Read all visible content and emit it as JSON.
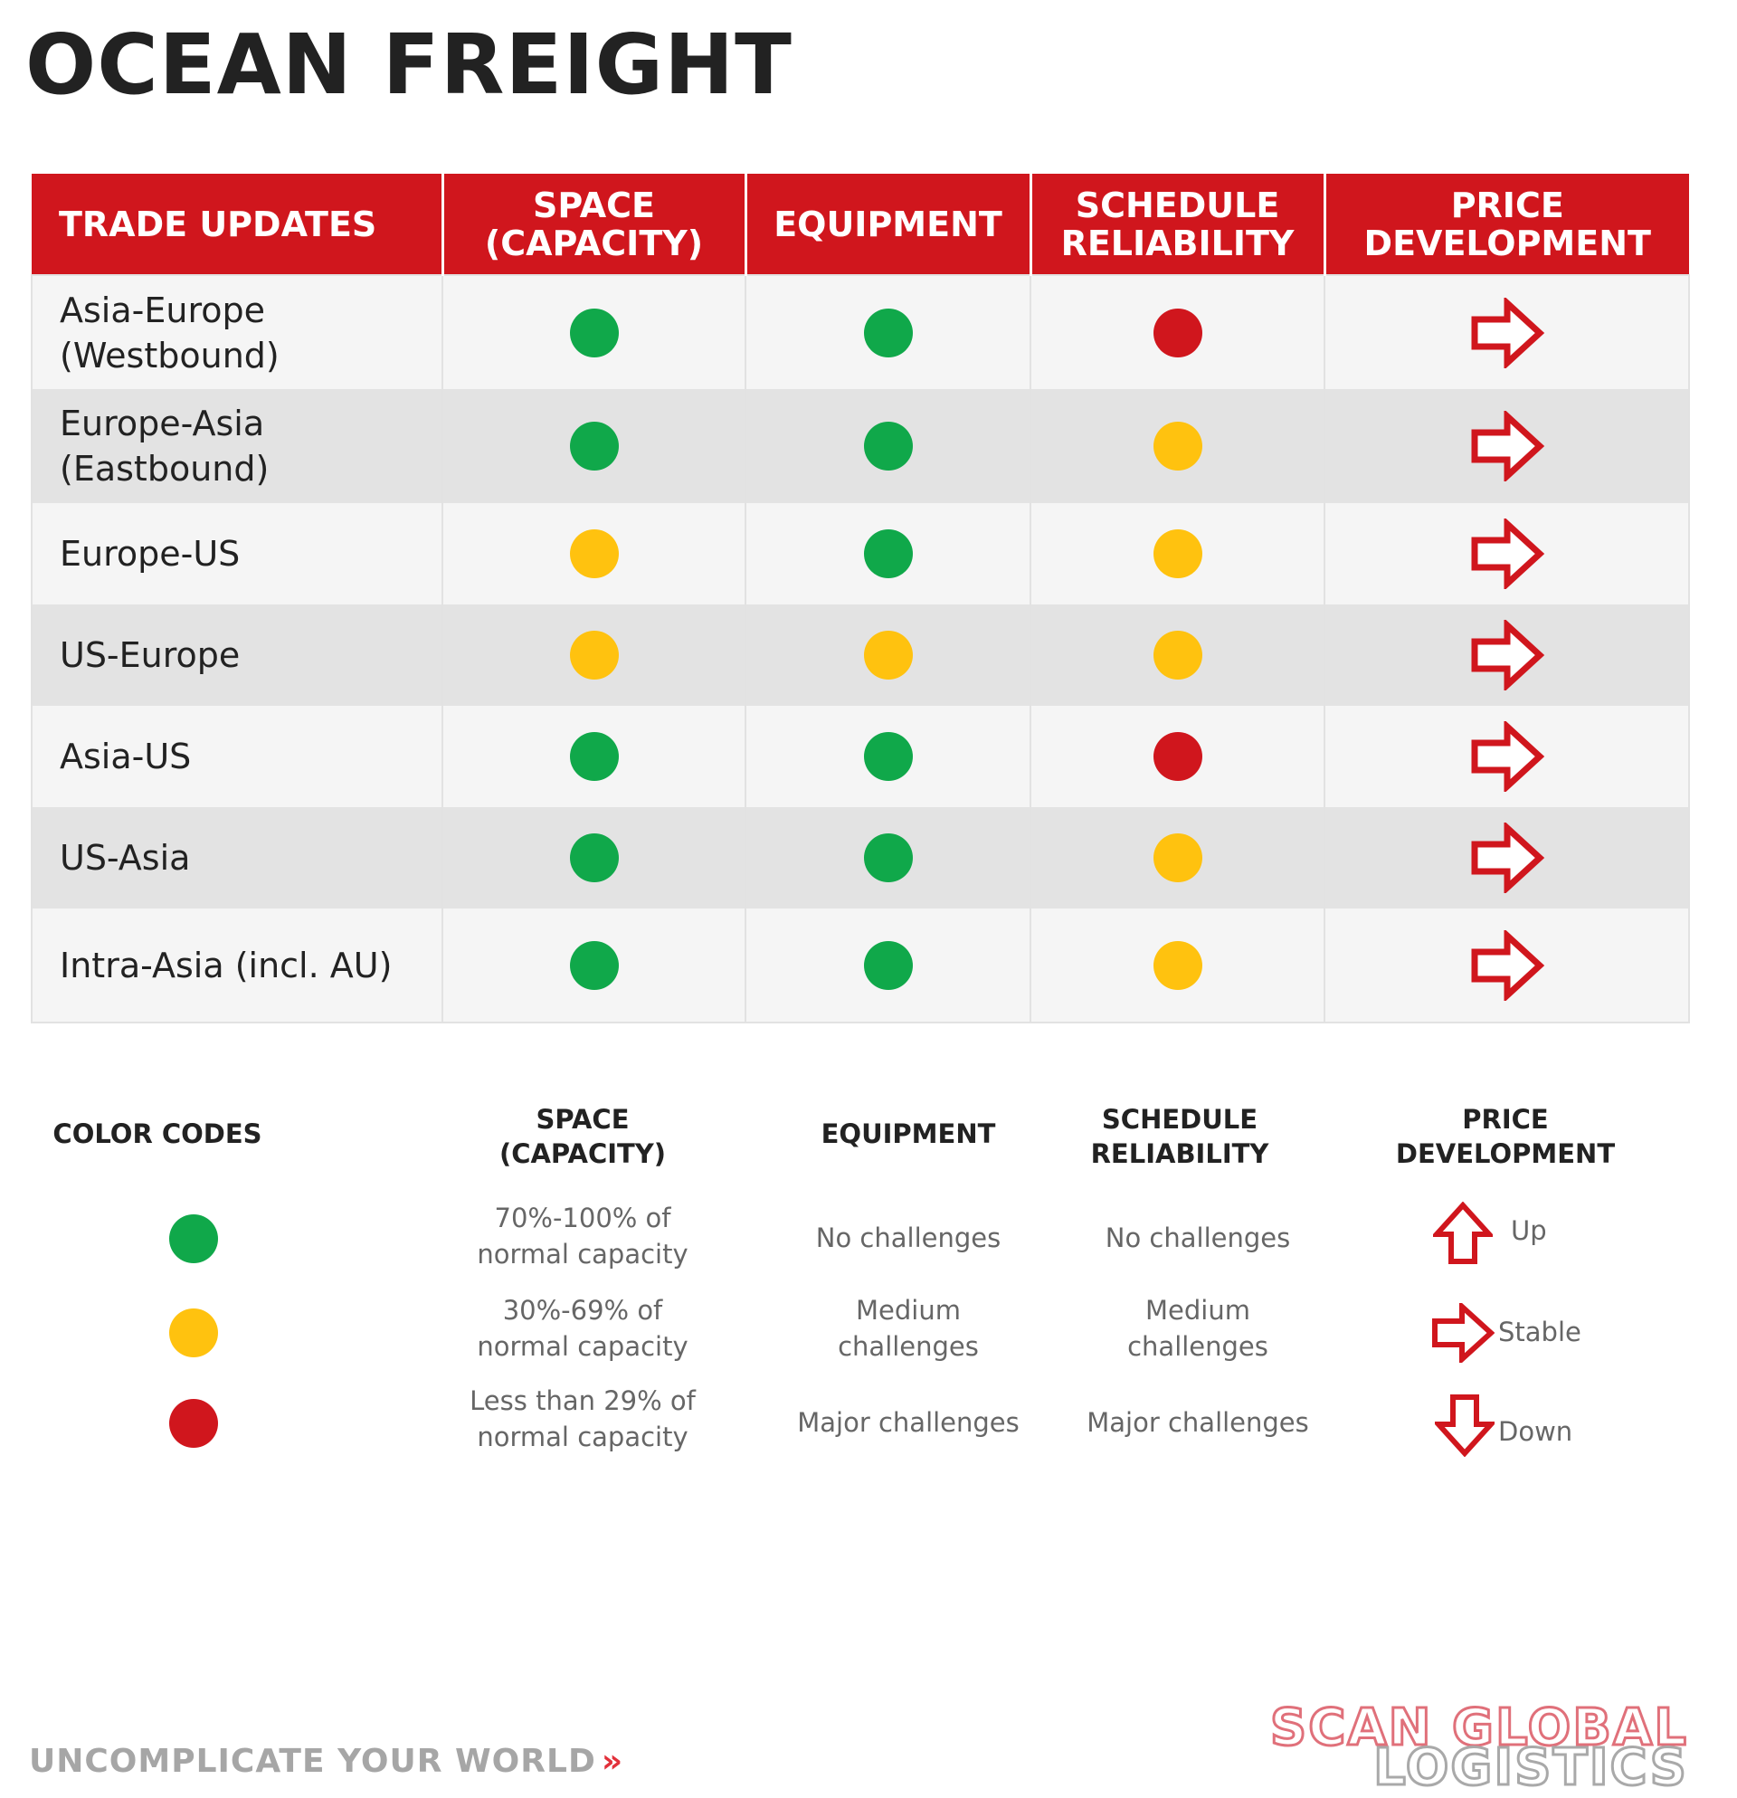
{
  "title": "OCEAN FREIGHT",
  "table": {
    "headers": {
      "trade": "TRADE UPDATES",
      "space": "SPACE (CAPACITY)",
      "equipment": "EQUIPMENT",
      "schedule": "SCHEDULE RELIABILITY",
      "price": "PRICE DEVELOPMENT"
    },
    "rows": [
      {
        "trade": "Asia-Europe (Westbound)",
        "space": "green",
        "equipment": "green",
        "schedule": "red",
        "price": "stable"
      },
      {
        "trade": "Europe-Asia (Eastbound)",
        "space": "green",
        "equipment": "green",
        "schedule": "yellow",
        "price": "stable"
      },
      {
        "trade": "Europe-US",
        "space": "yellow",
        "equipment": "green",
        "schedule": "yellow",
        "price": "stable"
      },
      {
        "trade": "US-Europe",
        "space": "yellow",
        "equipment": "yellow",
        "schedule": "yellow",
        "price": "stable"
      },
      {
        "trade": "Asia-US",
        "space": "green",
        "equipment": "green",
        "schedule": "red",
        "price": "stable"
      },
      {
        "trade": "US-Asia",
        "space": "green",
        "equipment": "green",
        "schedule": "yellow",
        "price": "stable"
      },
      {
        "trade": "Intra-Asia (incl. AU)",
        "space": "green",
        "equipment": "green",
        "schedule": "yellow",
        "price": "stable"
      }
    ]
  },
  "legend": {
    "color_codes_label": "COLOR CODES",
    "space_head": "SPACE (CAPACITY)",
    "equipment_head": "EQUIPMENT",
    "schedule_head": "SCHEDULE RELIABILITY",
    "price_head": "PRICE DEVELOPMENT",
    "space": [
      "70%-100% of normal capacity",
      "30%-69% of normal capacity",
      "Less than 29% of normal capacity"
    ],
    "equipment": [
      "No challenges",
      "Medium challenges",
      "Major challenges"
    ],
    "schedule": [
      "No challenges",
      "Medium challenges",
      "Major challenges"
    ],
    "price": [
      "Up",
      "Stable",
      "Down"
    ]
  },
  "colors": {
    "green": "#10a84a",
    "yellow": "#ffc20f",
    "red": "#d0161d",
    "header_red": "#d0161d"
  },
  "footer": {
    "tagline": "UNCOMPLICATE YOUR WORLD",
    "tagline_chevron": "»",
    "brand_line1": "SCAN GLOBAL",
    "brand_line2": "LOGISTICS"
  }
}
